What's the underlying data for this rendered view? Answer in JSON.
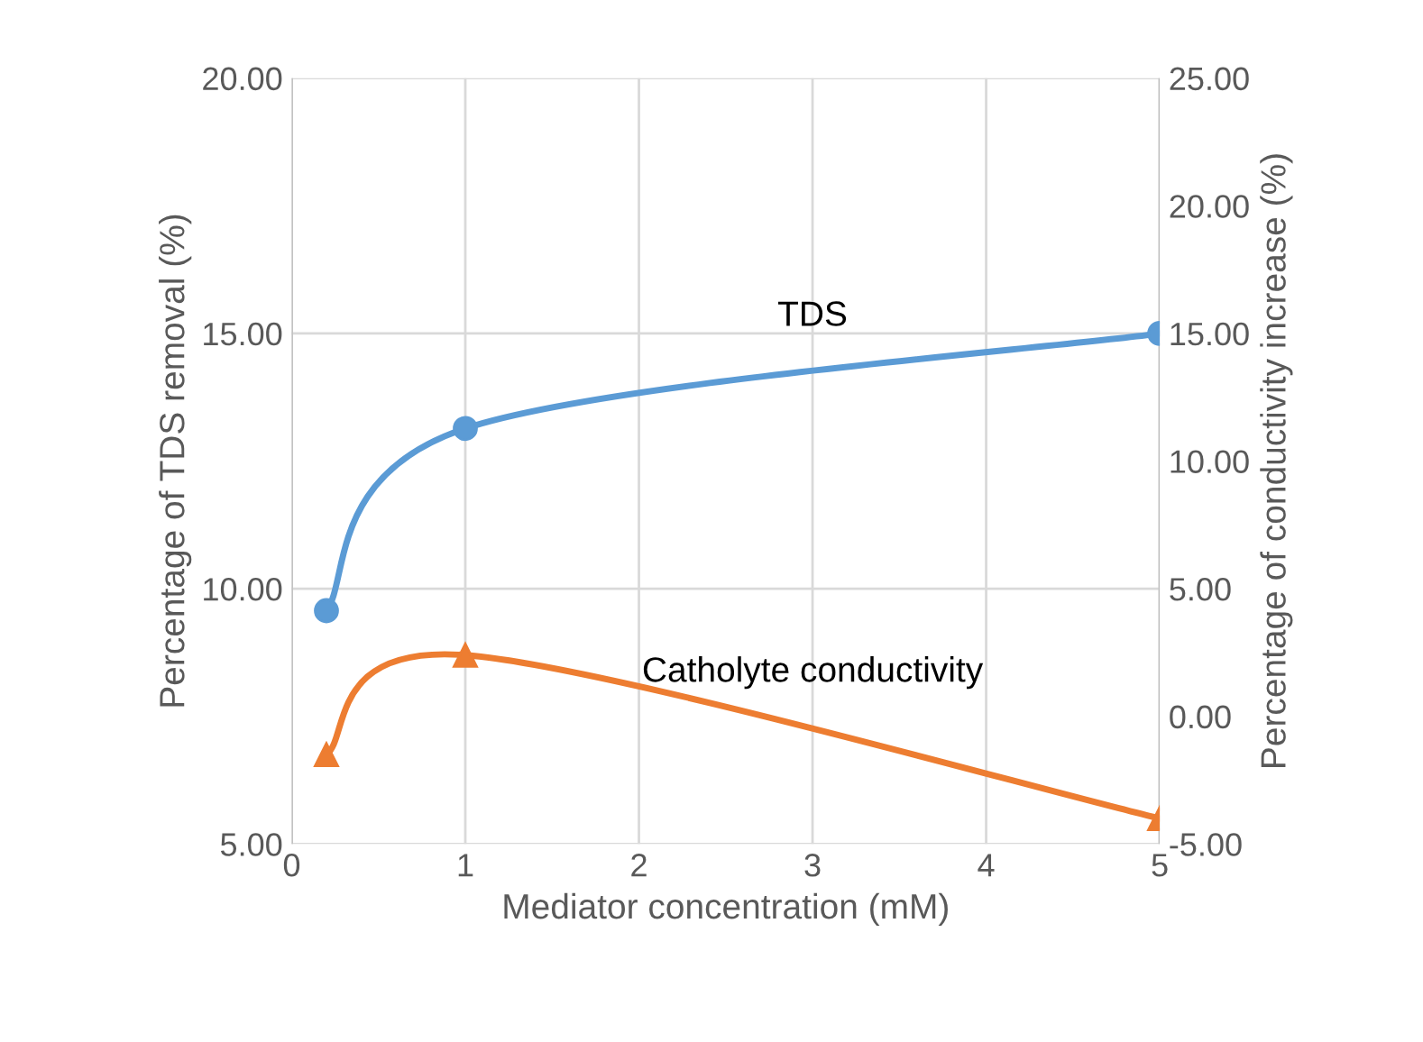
{
  "chart_data": {
    "type": "line",
    "xlabel": "Mediator concentration (mM)",
    "ylabel": "Percentage of TDS removal (%)",
    "y2label": "Percentage of conductivity increase (%)",
    "xlim": [
      0,
      5
    ],
    "xticks": [
      0,
      1,
      2,
      3,
      4,
      5
    ],
    "ylim": [
      5,
      20
    ],
    "yticks": [
      {
        "value": 5,
        "label": "5.00"
      },
      {
        "value": 10,
        "label": "10.00"
      },
      {
        "value": 15,
        "label": "15.00"
      },
      {
        "value": 20,
        "label": "20.00"
      }
    ],
    "y2lim": [
      -5,
      25
    ],
    "y2ticks": [
      {
        "value": -5,
        "label": "-5.00"
      },
      {
        "value": 0,
        "label": "0.00"
      },
      {
        "value": 5,
        "label": "5.00"
      },
      {
        "value": 10,
        "label": "10.00"
      },
      {
        "value": 15,
        "label": "15.00"
      },
      {
        "value": 20,
        "label": "20.00"
      },
      {
        "value": 25,
        "label": "25.00"
      }
    ],
    "grid": true,
    "legend": false,
    "series": [
      {
        "name": "TDS",
        "color": "#5b9bd5",
        "marker": "circle",
        "x": [
          0.2,
          1,
          5
        ],
        "values": [
          9.57,
          13.14,
          15.0
        ]
      },
      {
        "name": "Catholyte conductivity",
        "color": "#ed7d31",
        "marker": "triangle",
        "axis": "y2",
        "x": [
          0.2,
          1,
          5
        ],
        "values": [
          -1.5,
          2.4,
          -4.0
        ]
      }
    ]
  }
}
